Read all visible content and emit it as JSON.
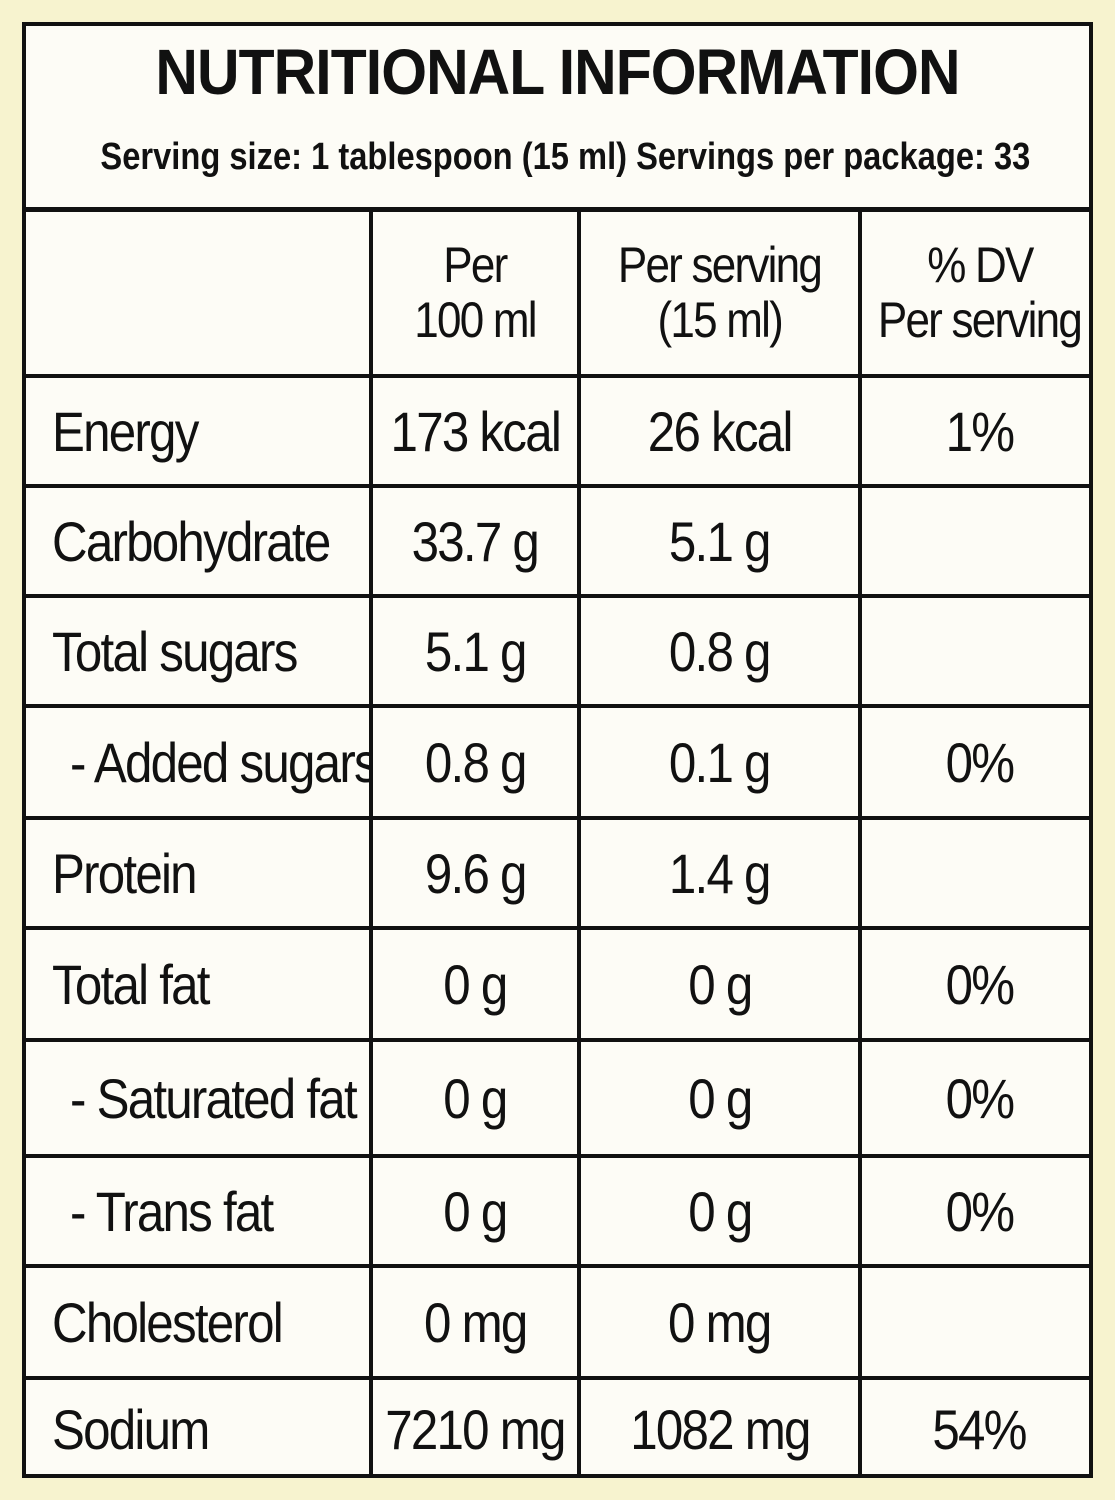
{
  "title": "NUTRITIONAL INFORMATION",
  "serving_line": "Serving size: 1 tablespoon (15 ml) Servings per package: 33",
  "columns": {
    "per100_line1": "Per",
    "per100_line2": "100 ml",
    "perserving_line1": "Per serving",
    "perserving_line2": "(15 ml)",
    "dv_line1": "% DV",
    "dv_line2": "Per serving"
  },
  "rows": [
    {
      "name": "Energy",
      "per100": "173 kcal",
      "per_serving": "26 kcal",
      "dv": "1%"
    },
    {
      "name": "Carbohydrate",
      "per100": "33.7 g",
      "per_serving": "5.1 g",
      "dv": ""
    },
    {
      "name": "Total sugars",
      "per100": "5.1 g",
      "per_serving": "0.8 g",
      "dv": ""
    },
    {
      "name": "- Added sugars",
      "per100": "0.8 g",
      "per_serving": "0.1 g",
      "dv": "0%"
    },
    {
      "name": "Protein",
      "per100": "9.6 g",
      "per_serving": "1.4 g",
      "dv": ""
    },
    {
      "name": "Total fat",
      "per100": "0 g",
      "per_serving": "0 g",
      "dv": "0%"
    },
    {
      "name": "- Saturated fat",
      "per100": "0 g",
      "per_serving": "0 g",
      "dv": "0%"
    },
    {
      "name": "- Trans fat",
      "per100": "0 g",
      "per_serving": "0 g",
      "dv": "0%"
    },
    {
      "name": "Cholesterol",
      "per100": "0 mg",
      "per_serving": "0 mg",
      "dv": ""
    },
    {
      "name": "Sodium",
      "per100": "7210 mg",
      "per_serving": "1082 mg",
      "dv": "54%"
    }
  ]
}
